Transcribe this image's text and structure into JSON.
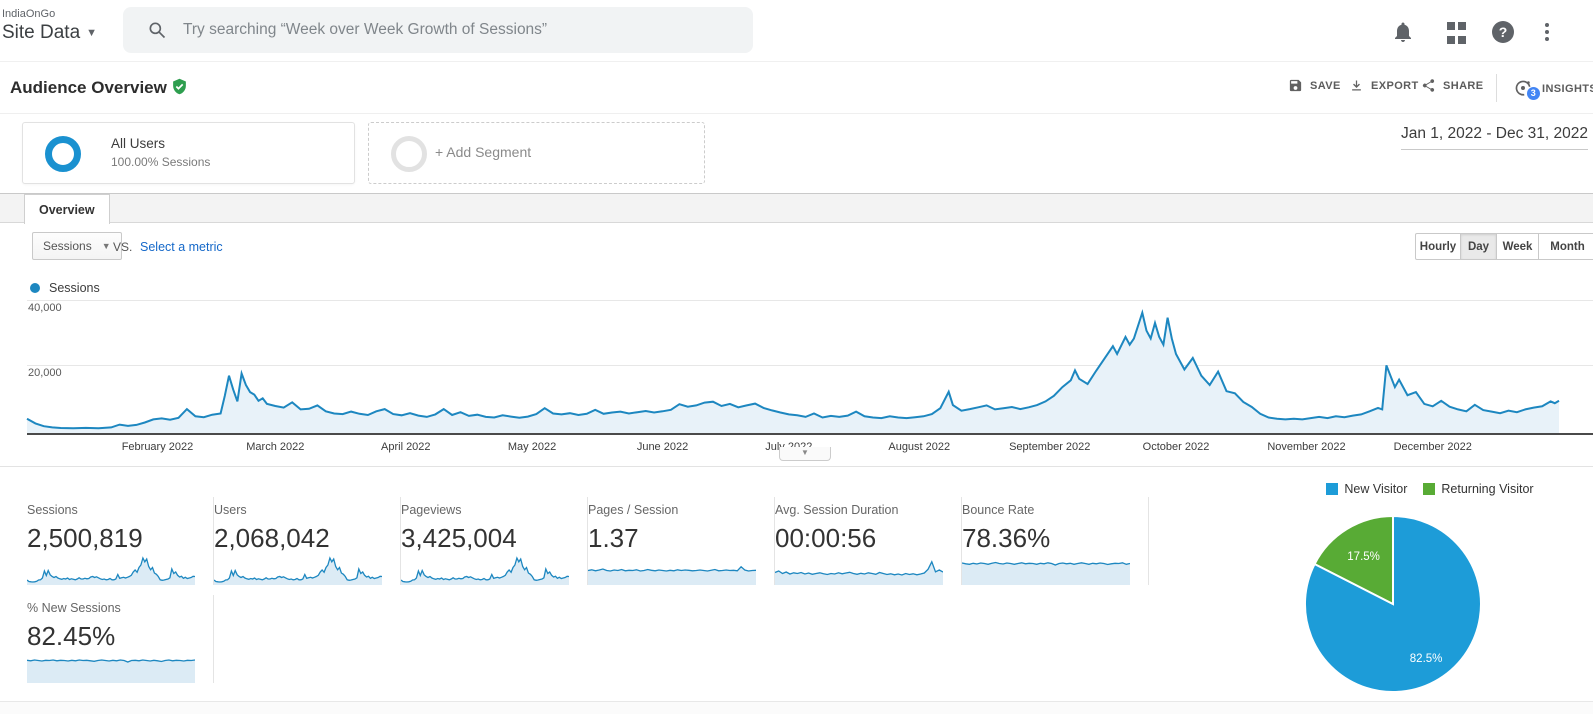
{
  "header": {
    "org": "IndiaOnGo",
    "view": "Site Data",
    "search_placeholder": "Try searching “Week over Week Growth of Sessions”"
  },
  "toolbar": {
    "title": "Audience Overview",
    "save_label": "SAVE",
    "export_label": "EXPORT",
    "share_label": "SHARE",
    "insights_label": "INSIGHTS",
    "insights_badge": "3"
  },
  "segments": {
    "all_users_title": "All Users",
    "all_users_subtitle": "100.00% Sessions",
    "add_segment_label": "+ Add Segment",
    "date_range": "Jan 1, 2022 - Dec 31, 2022"
  },
  "tabs": {
    "overview": "Overview"
  },
  "controls": {
    "metric_selector": "Sessions",
    "vs_label": "VS.",
    "select_metric_link": "Select a metric",
    "granularity": [
      "Hourly",
      "Day",
      "Week",
      "Month"
    ],
    "granularity_active": "Day"
  },
  "colors": {
    "line_blue": "#1d87c0",
    "area_fill": "#e8f2f9",
    "spark_fill": "#dcebf5",
    "pie_blue": "#1d9cd8",
    "pie_green": "#58ab35"
  },
  "chart_data": {
    "main_timeseries": {
      "type": "area",
      "series_name": "Sessions",
      "x_unit": "day_of_year_2022",
      "ylim": [
        0,
        48000
      ],
      "yticks": [
        40000,
        20000
      ],
      "ytick_labels": [
        "40,000",
        "20,000"
      ],
      "xtick_labels": [
        "February 2022",
        "March 2022",
        "April 2022",
        "May 2022",
        "June 2022",
        "July 2022",
        "August 2022",
        "September 2022",
        "October 2022",
        "November 2022",
        "December 2022"
      ],
      "x": [
        1,
        3,
        5,
        7,
        9,
        12,
        15,
        18,
        21,
        23,
        25,
        27,
        29,
        31,
        33,
        35,
        37,
        39,
        41,
        43,
        45,
        47,
        48,
        49,
        50,
        51,
        52,
        53,
        54,
        55,
        56,
        57,
        58,
        60,
        62,
        64,
        66,
        68,
        70,
        72,
        74,
        76,
        78,
        80,
        82,
        84,
        86,
        88,
        90,
        92,
        94,
        96,
        98,
        100,
        102,
        104,
        106,
        108,
        110,
        112,
        114,
        116,
        118,
        120,
        122,
        124,
        126,
        128,
        130,
        132,
        134,
        136,
        138,
        140,
        142,
        144,
        146,
        148,
        150,
        152,
        154,
        156,
        158,
        160,
        162,
        164,
        166,
        168,
        170,
        172,
        174,
        176,
        178,
        180,
        182,
        184,
        186,
        188,
        190,
        192,
        194,
        196,
        198,
        200,
        202,
        204,
        206,
        208,
        210,
        212,
        214,
        216,
        218,
        220,
        221,
        223,
        225,
        227,
        229,
        231,
        233,
        235,
        237,
        239,
        241,
        243,
        245,
        247,
        249,
        250,
        251,
        253,
        255,
        257,
        259,
        260,
        262,
        263,
        264,
        266,
        267,
        268,
        269,
        270,
        271,
        272,
        273,
        274,
        276,
        278,
        280,
        282,
        284,
        286,
        288,
        290,
        292,
        294,
        296,
        298,
        300,
        302,
        304,
        306,
        308,
        310,
        312,
        314,
        316,
        318,
        320,
        322,
        323,
        324,
        326,
        327,
        329,
        331,
        333,
        335,
        337,
        339,
        341,
        343,
        345,
        347,
        349,
        351,
        353,
        355,
        357,
        359,
        361,
        363,
        364,
        365
      ],
      "values": [
        4600,
        3100,
        2200,
        1800,
        1600,
        1500,
        1650,
        1550,
        1800,
        2700,
        2300,
        2600,
        3400,
        4400,
        4700,
        4300,
        4900,
        7700,
        5400,
        5100,
        5900,
        6300,
        12000,
        18500,
        14000,
        10200,
        19200,
        15500,
        13200,
        12400,
        10400,
        11200,
        9400,
        8700,
        8200,
        9900,
        7600,
        7800,
        8900,
        7000,
        6300,
        6100,
        6900,
        6200,
        5800,
        7000,
        7700,
        6100,
        5700,
        6400,
        5600,
        5200,
        6000,
        7700,
        5800,
        6700,
        5500,
        5900,
        5200,
        5000,
        5700,
        5300,
        4900,
        5300,
        6100,
        8000,
        6300,
        6000,
        6400,
        5800,
        6200,
        7500,
        6200,
        6600,
        6900,
        6300,
        6700,
        7100,
        6600,
        7000,
        7500,
        9300,
        8500,
        8900,
        9800,
        10100,
        8700,
        9400,
        8300,
        8900,
        9500,
        8100,
        7300,
        6600,
        6000,
        5700,
        5200,
        6300,
        5000,
        5500,
        5200,
        5600,
        6900,
        5400,
        5000,
        4800,
        5400,
        5000,
        4800,
        5100,
        5400,
        6100,
        8000,
        13300,
        9000,
        7200,
        7700,
        8300,
        8900,
        7600,
        8000,
        8400,
        7700,
        8300,
        9000,
        10200,
        12000,
        14800,
        17000,
        20200,
        17500,
        15800,
        20000,
        24000,
        28000,
        25500,
        31000,
        28500,
        30500,
        38800,
        33000,
        30500,
        35500,
        31000,
        28500,
        37200,
        30500,
        25500,
        20500,
        24200,
        18500,
        15500,
        19800,
        13500,
        12800,
        10000,
        8400,
        6200,
        5000,
        4600,
        4400,
        4600,
        4400,
        4800,
        5200,
        4800,
        5400,
        5100,
        5600,
        6000,
        7000,
        8100,
        7600,
        21800,
        14800,
        17200,
        12200,
        13200,
        9400,
        8600,
        10400,
        8500,
        7600,
        7000,
        9100,
        7400,
        6900,
        6400,
        7200,
        6700,
        7600,
        8200,
        8600,
        10200,
        9600,
        10400
      ]
    },
    "metric_cards": [
      {
        "label": "Sessions",
        "value": "2,500,819",
        "spark": "volume"
      },
      {
        "label": "Users",
        "value": "2,068,042",
        "spark": "volume"
      },
      {
        "label": "Pageviews",
        "value": "3,425,004",
        "spark": "volume"
      },
      {
        "label": "Pages / Session",
        "value": "1.37",
        "spark": "ratio"
      },
      {
        "label": "Avg. Session Duration",
        "value": "00:00:56",
        "spark": "duration"
      },
      {
        "label": "Bounce Rate",
        "value": "78.36%",
        "spark": "bounce"
      },
      {
        "label": "% New Sessions",
        "value": "82.45%",
        "spark": "new_sessions"
      }
    ],
    "spark_shapes": {
      "volume": [
        0.12,
        0.06,
        0.05,
        0.04,
        0.05,
        0.07,
        0.12,
        0.13,
        0.2,
        0.48,
        0.3,
        0.5,
        0.33,
        0.26,
        0.22,
        0.26,
        0.2,
        0.17,
        0.15,
        0.18,
        0.16,
        0.2,
        0.14,
        0.17,
        0.15,
        0.13,
        0.16,
        0.21,
        0.16,
        0.16,
        0.19,
        0.17,
        0.18,
        0.24,
        0.26,
        0.22,
        0.25,
        0.21,
        0.17,
        0.14,
        0.16,
        0.13,
        0.14,
        0.18,
        0.13,
        0.13,
        0.16,
        0.34,
        0.19,
        0.21,
        0.23,
        0.2,
        0.23,
        0.26,
        0.31,
        0.44,
        0.52,
        0.43,
        0.62,
        0.72,
        1.0,
        0.85,
        0.96,
        0.66,
        0.53,
        0.62,
        0.4,
        0.35,
        0.26,
        0.13,
        0.11,
        0.12,
        0.14,
        0.16,
        0.21,
        0.56,
        0.38,
        0.44,
        0.31,
        0.24,
        0.27,
        0.19,
        0.23,
        0.18,
        0.2,
        0.22,
        0.27,
        0.26
      ],
      "ratio": [
        0.5,
        0.53,
        0.49,
        0.52,
        0.56,
        0.5,
        0.48,
        0.52,
        0.5,
        0.54,
        0.49,
        0.51,
        0.5,
        0.53,
        0.48,
        0.5,
        0.54,
        0.51,
        0.49,
        0.52,
        0.5,
        0.48,
        0.51,
        0.49,
        0.53,
        0.5,
        0.52,
        0.51,
        0.49,
        0.5,
        0.52,
        0.5,
        0.48,
        0.51,
        0.54,
        0.49,
        0.5,
        0.52,
        0.5,
        0.51,
        0.49,
        0.65,
        0.52,
        0.48,
        0.5,
        0.51
      ],
      "duration": [
        0.42,
        0.48,
        0.38,
        0.44,
        0.36,
        0.41,
        0.38,
        0.42,
        0.36,
        0.4,
        0.35,
        0.38,
        0.41,
        0.37,
        0.34,
        0.38,
        0.36,
        0.41,
        0.37,
        0.4,
        0.43,
        0.38,
        0.35,
        0.39,
        0.36,
        0.41,
        0.38,
        0.35,
        0.42,
        0.38,
        0.34,
        0.37,
        0.33,
        0.36,
        0.32,
        0.38,
        0.34,
        0.37,
        0.33,
        0.36,
        0.4,
        0.55,
        0.85,
        0.45,
        0.52,
        0.44
      ],
      "bounce": [
        0.8,
        0.77,
        0.75,
        0.79,
        0.76,
        0.8,
        0.78,
        0.75,
        0.79,
        0.82,
        0.78,
        0.76,
        0.8,
        0.78,
        0.75,
        0.78,
        0.81,
        0.77,
        0.79,
        0.78,
        0.75,
        0.79,
        0.77,
        0.81,
        0.78,
        0.72,
        0.78,
        0.8,
        0.77,
        0.79,
        0.75,
        0.78,
        0.81,
        0.78,
        0.75,
        0.79,
        0.77,
        0.8,
        0.78,
        0.74,
        0.77,
        0.79,
        0.78,
        0.81,
        0.75,
        0.78
      ],
      "new_sessions": [
        0.83,
        0.81,
        0.84,
        0.82,
        0.8,
        0.83,
        0.82,
        0.84,
        0.81,
        0.83,
        0.82,
        0.8,
        0.83,
        0.81,
        0.84,
        0.82,
        0.83,
        0.81,
        0.79,
        0.82,
        0.84,
        0.82,
        0.8,
        0.83,
        0.81,
        0.84,
        0.82,
        0.76,
        0.82,
        0.83,
        0.81,
        0.84,
        0.82,
        0.8,
        0.83,
        0.81,
        0.78,
        0.82,
        0.84,
        0.81,
        0.83,
        0.82,
        0.8,
        0.83,
        0.82,
        0.84
      ]
    },
    "pie": {
      "type": "pie",
      "labels": [
        "New Visitor",
        "Returning Visitor"
      ],
      "values": [
        82.5,
        17.5
      ],
      "value_labels": [
        "82.5%",
        "17.5%"
      ],
      "colors": [
        "#1d9cd8",
        "#58ab35"
      ]
    }
  }
}
